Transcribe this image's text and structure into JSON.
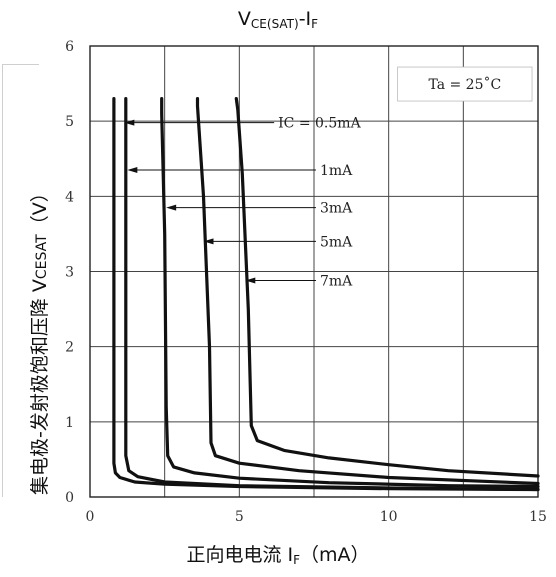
{
  "chart_data": {
    "type": "line",
    "title_main": "V",
    "title_sub1": "CE(SAT)",
    "title_mid": "-I",
    "title_sub2": "F",
    "ylabel_text": "集电极-发射极饱和压降 V",
    "ylabel_small": "CESAT",
    "ylabel_unit": "（V）",
    "xlabel_text": "正向电电流 I",
    "xlabel_sub": "F",
    "xlabel_unit": "（mA）",
    "xlim": [
      0,
      15
    ],
    "ylim": [
      0,
      6
    ],
    "xticks": [
      "0",
      "5",
      "10",
      "15"
    ],
    "yticks": [
      "0",
      "1",
      "2",
      "3",
      "4",
      "5",
      "6"
    ],
    "grid": true,
    "annotation_ta": "Ta = 25˚C",
    "series": [
      {
        "name": "IC = 0.5mA",
        "label_x": 6.3,
        "label_y": 4.98,
        "arrow_end_x": 1.15,
        "arrow_end_y": 4.98,
        "points": [
          [
            0.8,
            5.3
          ],
          [
            0.8,
            0.45
          ],
          [
            0.85,
            0.32
          ],
          [
            1.0,
            0.26
          ],
          [
            1.5,
            0.2
          ],
          [
            2.5,
            0.17
          ],
          [
            5,
            0.14
          ],
          [
            10,
            0.11
          ],
          [
            15,
            0.1
          ]
        ]
      },
      {
        "name": "1mA",
        "label_x": 7.7,
        "label_y": 4.35,
        "arrow_end_x": 1.25,
        "arrow_end_y": 4.35,
        "points": [
          [
            1.2,
            5.3
          ],
          [
            1.2,
            0.55
          ],
          [
            1.3,
            0.35
          ],
          [
            1.6,
            0.27
          ],
          [
            2.5,
            0.2
          ],
          [
            5,
            0.15
          ],
          [
            10,
            0.12
          ],
          [
            15,
            0.1
          ]
        ]
      },
      {
        "name": "3mA",
        "label_x": 7.7,
        "label_y": 3.85,
        "arrow_end_x": 2.55,
        "arrow_end_y": 3.85,
        "points": [
          [
            2.4,
            5.3
          ],
          [
            2.4,
            5.1
          ],
          [
            2.5,
            3.5
          ],
          [
            2.55,
            1.2
          ],
          [
            2.6,
            0.55
          ],
          [
            2.8,
            0.4
          ],
          [
            3.5,
            0.32
          ],
          [
            5,
            0.25
          ],
          [
            8,
            0.19
          ],
          [
            12,
            0.15
          ],
          [
            15,
            0.14
          ]
        ]
      },
      {
        "name": "5mA",
        "label_x": 7.7,
        "label_y": 3.4,
        "arrow_end_x": 3.8,
        "arrow_end_y": 3.4,
        "points": [
          [
            3.6,
            5.3
          ],
          [
            3.6,
            5.2
          ],
          [
            3.8,
            4.0
          ],
          [
            4.0,
            2.0
          ],
          [
            4.05,
            0.72
          ],
          [
            4.2,
            0.55
          ],
          [
            5,
            0.45
          ],
          [
            7,
            0.35
          ],
          [
            10,
            0.26
          ],
          [
            15,
            0.18
          ]
        ]
      },
      {
        "name": "7mA",
        "label_x": 7.7,
        "label_y": 2.88,
        "arrow_end_x": 5.2,
        "arrow_end_y": 2.88,
        "points": [
          [
            4.9,
            5.3
          ],
          [
            4.95,
            5.15
          ],
          [
            5.1,
            4.3
          ],
          [
            5.3,
            2.5
          ],
          [
            5.4,
            0.95
          ],
          [
            5.6,
            0.75
          ],
          [
            6.5,
            0.62
          ],
          [
            8,
            0.52
          ],
          [
            10,
            0.43
          ],
          [
            12,
            0.35
          ],
          [
            15,
            0.28
          ]
        ]
      }
    ]
  }
}
